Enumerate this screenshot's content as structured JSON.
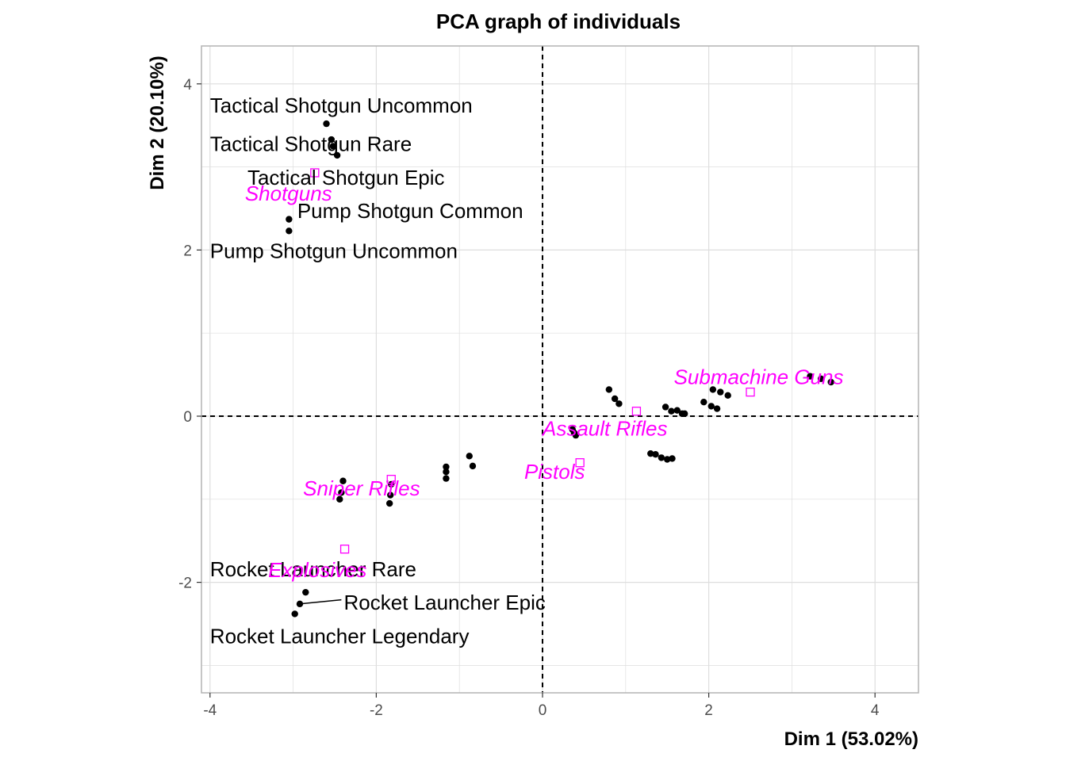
{
  "chart_data": {
    "type": "scatter",
    "title": "PCA graph of individuals",
    "xlabel": "Dim 1 (53.02%)",
    "ylabel": "Dim 2 (20.10%)",
    "xlim": [
      -4.5,
      4.5
    ],
    "ylim": [
      -3.3,
      4.5
    ],
    "xticks": [
      -4,
      -2,
      0,
      2,
      4
    ],
    "yticks": [
      -2,
      0,
      2,
      4
    ],
    "grid": true,
    "reference_lines": {
      "x": 0,
      "y": 0
    },
    "colors": {
      "points": "#000000",
      "categories": "#ff00ff",
      "grid": "#dedede",
      "border": "#b3b3b3"
    },
    "individuals": [
      {
        "x": -2.6,
        "y": 3.52
      },
      {
        "x": -2.54,
        "y": 3.33
      },
      {
        "x": -2.52,
        "y": 3.25
      },
      {
        "x": -2.47,
        "y": 3.14
      },
      {
        "x": -3.05,
        "y": 2.37
      },
      {
        "x": -3.05,
        "y": 2.23
      },
      {
        "x": -2.4,
        "y": -0.78
      },
      {
        "x": -2.42,
        "y": -0.92
      },
      {
        "x": -2.44,
        "y": -1.0
      },
      {
        "x": -1.82,
        "y": -0.82
      },
      {
        "x": -1.83,
        "y": -0.95
      },
      {
        "x": -1.84,
        "y": -1.05
      },
      {
        "x": -1.16,
        "y": -0.61
      },
      {
        "x": -1.16,
        "y": -0.67
      },
      {
        "x": -1.16,
        "y": -0.75
      },
      {
        "x": -0.88,
        "y": -0.48
      },
      {
        "x": -0.84,
        "y": -0.6
      },
      {
        "x": -2.85,
        "y": -2.12
      },
      {
        "x": -2.92,
        "y": -2.26
      },
      {
        "x": -2.98,
        "y": -2.38
      },
      {
        "x": 0.36,
        "y": -0.16
      },
      {
        "x": 0.38,
        "y": -0.2
      },
      {
        "x": 0.4,
        "y": -0.23
      },
      {
        "x": 0.8,
        "y": 0.32
      },
      {
        "x": 0.87,
        "y": 0.21
      },
      {
        "x": 0.92,
        "y": 0.15
      },
      {
        "x": 1.3,
        "y": -0.45
      },
      {
        "x": 1.36,
        "y": -0.46
      },
      {
        "x": 1.43,
        "y": -0.5
      },
      {
        "x": 1.5,
        "y": -0.52
      },
      {
        "x": 1.56,
        "y": -0.51
      },
      {
        "x": 1.48,
        "y": 0.11
      },
      {
        "x": 1.55,
        "y": 0.06
      },
      {
        "x": 1.62,
        "y": 0.07
      },
      {
        "x": 1.68,
        "y": 0.03
      },
      {
        "x": 1.71,
        "y": 0.03
      },
      {
        "x": 1.94,
        "y": 0.17
      },
      {
        "x": 2.03,
        "y": 0.12
      },
      {
        "x": 2.1,
        "y": 0.09
      },
      {
        "x": 2.05,
        "y": 0.32
      },
      {
        "x": 2.14,
        "y": 0.29
      },
      {
        "x": 2.23,
        "y": 0.25
      },
      {
        "x": 3.22,
        "y": 0.48
      },
      {
        "x": 3.35,
        "y": 0.45
      },
      {
        "x": 3.47,
        "y": 0.41
      }
    ],
    "individual_labels": [
      {
        "text": "Tactical Shotgun Uncommon",
        "x": -4.0,
        "y": 3.74
      },
      {
        "text": "Tactical Shotgun Rare",
        "x": -4.0,
        "y": 3.28
      },
      {
        "text": "Tactical Shotgun Epic",
        "x": -3.55,
        "y": 2.87
      },
      {
        "text": "Pump Shotgun Common",
        "x": -2.95,
        "y": 2.47
      },
      {
        "text": "Pump Shotgun Uncommon",
        "x": -4.0,
        "y": 1.99
      },
      {
        "text": "Rocket Launcher Rare",
        "x": -4.0,
        "y": -1.84
      },
      {
        "text": "Rocket Launcher Epic",
        "x": -2.39,
        "y": -2.24
      },
      {
        "text": "Rocket Launcher Legendary",
        "x": -4.0,
        "y": -2.65
      }
    ],
    "leader_line": {
      "from": [
        -2.92,
        -2.26
      ],
      "to": [
        -2.42,
        -2.21
      ]
    },
    "categories": [
      {
        "name": "Shotguns",
        "x": -2.74,
        "y": 2.93,
        "lx": -3.58,
        "ly": 2.68
      },
      {
        "name": "Sniper Rifles",
        "x": -1.82,
        "y": -0.76,
        "lx": -2.88,
        "ly": -0.87
      },
      {
        "name": "Explosives",
        "x": -2.38,
        "y": -1.6,
        "lx": -3.3,
        "ly": -1.85
      },
      {
        "name": "Pistols",
        "x": 0.45,
        "y": -0.56,
        "lx": -0.22,
        "ly": -0.67
      },
      {
        "name": "Assault Rifles",
        "x": 1.13,
        "y": 0.06,
        "lx": 0.0,
        "ly": -0.15
      },
      {
        "name": "Submachine Guns",
        "x": 2.5,
        "y": 0.29,
        "lx": 1.58,
        "ly": 0.47
      }
    ]
  }
}
